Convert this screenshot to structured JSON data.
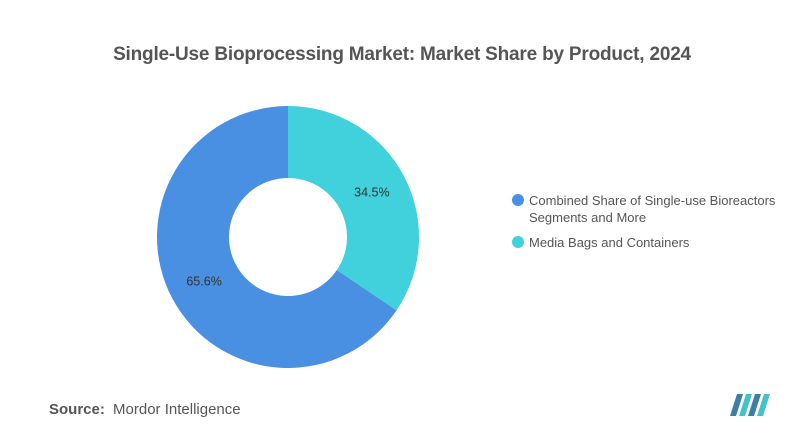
{
  "chart_data": {
    "type": "pie",
    "title": "Single-Use Bioprocessing Market: Market Share by Product, 2024",
    "donut": true,
    "categories": [
      "Media Bags and Containers",
      "Combined Share of Single-use Bioreactors Segments and More"
    ],
    "values": [
      34.5,
      65.6
    ],
    "labels": [
      "34.5%",
      "65.6%"
    ],
    "colors": [
      "#40D1DC",
      "#4A90E2"
    ],
    "legend_position": "right"
  },
  "source": {
    "label": "Source:",
    "value": "Mordor Intelligence"
  },
  "logo": {
    "icon": "mordor-intelligence-logo",
    "colors": [
      "#3D7EA6",
      "#45C1CC"
    ]
  }
}
